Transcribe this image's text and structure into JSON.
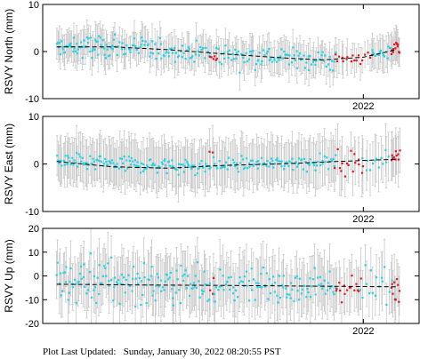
{
  "footer": {
    "label": "Plot Last Updated:",
    "value": "Sunday, January 30, 2022 08:20:55 PST"
  },
  "colors": {
    "cyan_points": "#22d3e6",
    "red_points": "#e8141e",
    "error_bars": "#c8c8c8",
    "trend": "#000000"
  },
  "chart_data": [
    {
      "type": "scatter",
      "ylabel": "RSVY North (mm)",
      "ylim": [
        -10,
        10
      ],
      "yticks": [
        -10,
        0,
        10
      ],
      "xlim": [
        2020.85,
        2022.2
      ],
      "xticks": [
        {
          "value": 2022.0,
          "label": "2022"
        }
      ],
      "grid": false,
      "error_bar_mm": 3,
      "trend": {
        "x": [
          2020.9,
          2021.1,
          2021.3,
          2021.5,
          2021.7,
          2021.85,
          2022.0,
          2022.12
        ],
        "y": [
          1.0,
          1.0,
          0.4,
          -0.5,
          -1.3,
          -1.8,
          -1.2,
          0.4
        ]
      },
      "segments": [
        {
          "x0": 2020.9,
          "x1": 2021.1,
          "n": 60,
          "trend": [
            0.8,
            1.0
          ],
          "sd": 1.9,
          "color": "cyan"
        },
        {
          "x0": 2021.1,
          "x1": 2021.45,
          "n": 80,
          "trend": [
            1.0,
            -0.3
          ],
          "sd": 1.6,
          "color": "cyan"
        },
        {
          "x0": 2021.45,
          "x1": 2021.475,
          "n": 6,
          "trend": [
            -1.2,
            -1.4
          ],
          "sd": 0.8,
          "color": "red"
        },
        {
          "x0": 2021.475,
          "x1": 2021.9,
          "n": 95,
          "trend": [
            -0.5,
            -1.9
          ],
          "sd": 1.7,
          "color": "cyan"
        },
        {
          "x0": 2021.9,
          "x1": 2022.03,
          "n": 18,
          "trend": [
            -1.8,
            -1.0
          ],
          "sd": 1.1,
          "color": "red"
        },
        {
          "x0": 2022.03,
          "x1": 2022.1,
          "n": 16,
          "trend": [
            -1.0,
            0.2
          ],
          "sd": 1.2,
          "color": "cyan"
        },
        {
          "x0": 2022.1,
          "x1": 2022.13,
          "n": 12,
          "trend": [
            0.4,
            1.5
          ],
          "sd": 1.3,
          "color": "red"
        }
      ]
    },
    {
      "type": "scatter",
      "ylabel": "RSVY East (mm)",
      "ylim": [
        -10,
        10
      ],
      "yticks": [
        -10,
        0,
        10
      ],
      "xlim": [
        2020.85,
        2022.2
      ],
      "xticks": [
        {
          "value": 2022.0,
          "label": "2022"
        }
      ],
      "grid": false,
      "error_bar_mm": 4.5,
      "trend": {
        "x": [
          2020.9,
          2021.1,
          2021.3,
          2021.5,
          2021.7,
          2021.9,
          2022.12
        ],
        "y": [
          0.5,
          -0.6,
          -0.9,
          -0.3,
          0.0,
          0.5,
          1.0
        ]
      },
      "segments": [
        {
          "x0": 2020.9,
          "x1": 2021.45,
          "n": 140,
          "trend": [
            0.5,
            -0.6
          ],
          "sd": 1.2,
          "color": "cyan"
        },
        {
          "x0": 2021.45,
          "x1": 2021.46,
          "n": 2,
          "trend": [
            2.5,
            3.0
          ],
          "sd": 0.5,
          "color": "red"
        },
        {
          "x0": 2021.46,
          "x1": 2021.9,
          "n": 100,
          "trend": [
            -0.3,
            0.6
          ],
          "sd": 1.1,
          "color": "cyan"
        },
        {
          "x0": 2021.9,
          "x1": 2022.0,
          "n": 16,
          "trend": [
            0.0,
            0.4
          ],
          "sd": 1.8,
          "color": "red"
        },
        {
          "x0": 2022.0,
          "x1": 2022.1,
          "n": 14,
          "trend": [
            0.4,
            1.0
          ],
          "sd": 1.1,
          "color": "cyan"
        },
        {
          "x0": 2022.1,
          "x1": 2022.13,
          "n": 10,
          "trend": [
            1.2,
            2.2
          ],
          "sd": 0.9,
          "color": "red"
        }
      ]
    },
    {
      "type": "scatter",
      "ylabel": "RSVY Up (mm)",
      "ylim": [
        -20,
        20
      ],
      "yticks": [
        -20,
        -10,
        0,
        10,
        20
      ],
      "xlim": [
        2020.85,
        2022.2
      ],
      "xticks": [
        {
          "value": 2022.0,
          "label": "2022"
        }
      ],
      "grid": false,
      "error_bar_mm": 10,
      "trend": {
        "x": [
          2020.9,
          2021.2,
          2021.5,
          2021.8,
          2022.12
        ],
        "y": [
          -3.5,
          -3.8,
          -4.0,
          -4.3,
          -4.6
        ]
      },
      "segments": [
        {
          "x0": 2020.9,
          "x1": 2021.45,
          "n": 140,
          "trend": [
            -2.0,
            -3.5
          ],
          "sd": 6.5,
          "color": "cyan"
        },
        {
          "x0": 2021.45,
          "x1": 2021.465,
          "n": 3,
          "trend": [
            -4.0,
            -4.0
          ],
          "sd": 4.0,
          "color": "red"
        },
        {
          "x0": 2021.465,
          "x1": 2021.9,
          "n": 100,
          "trend": [
            -4.0,
            -4.5
          ],
          "sd": 5.0,
          "color": "cyan"
        },
        {
          "x0": 2021.9,
          "x1": 2021.99,
          "n": 16,
          "trend": [
            -4.5,
            -4.5
          ],
          "sd": 4.0,
          "color": "red"
        },
        {
          "x0": 2021.99,
          "x1": 2022.1,
          "n": 16,
          "trend": [
            -4.5,
            -4.5
          ],
          "sd": 5.0,
          "color": "cyan"
        },
        {
          "x0": 2022.1,
          "x1": 2022.13,
          "n": 10,
          "trend": [
            -4.5,
            -4.5
          ],
          "sd": 5.0,
          "color": "red"
        }
      ]
    }
  ]
}
